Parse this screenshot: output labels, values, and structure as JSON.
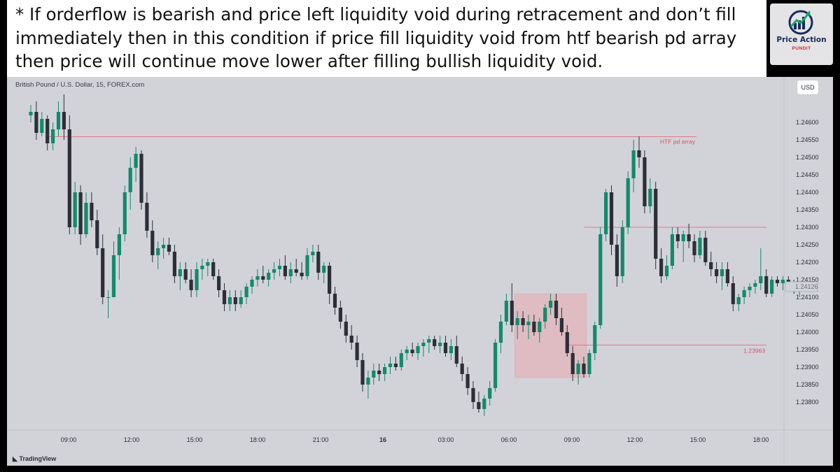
{
  "note": {
    "text": "* If orderflow is bearish and price left liquidity void during retracement and don’t fill immediately then in this condition if price fill liquidity void from htf bearish pd array then price will continue move lower after filling bullish liquidity void."
  },
  "logo": {
    "title": "Price Action",
    "subtitle": "PUNDIT"
  },
  "chart": {
    "symbol": "British Pound / U.S. Dollar, 15, FOREX.com",
    "currency": "USD",
    "watermark": "TradingView",
    "colors": {
      "background": "#d2d3d9",
      "bull": "#138a6c",
      "bear": "#2c2f38",
      "level_line": "#e07a80",
      "level_text": "#d9525a",
      "zone_fill": "#e0b7bc"
    }
  },
  "chart_data": {
    "type": "candlestick",
    "timeframe": "15",
    "y_axis": {
      "ylim": [
        1.2376,
        1.2464
      ],
      "ticks": [
        "1.24600",
        "1.24550",
        "1.24500",
        "1.24450",
        "1.24400",
        "1.24350",
        "1.24300",
        "1.24250",
        "1.24200",
        "1.24150",
        "1.24100",
        "1.24050",
        "1.24000",
        "1.23950",
        "1.23900",
        "1.23850",
        "1.23800"
      ],
      "last_price_label": "1.24126"
    },
    "x_axis": {
      "tick_labels": [
        "09:00",
        "12:00",
        "15:00",
        "18:00",
        "21:00",
        "16",
        "03:00",
        "06:00",
        "09:00",
        "12:00",
        "15:00",
        "18:00"
      ]
    },
    "levels": [
      {
        "price": 1.24559,
        "label": "HTF pd array"
      },
      {
        "price": 1.243,
        "label": ""
      },
      {
        "price": 1.23963,
        "label": "1.23963"
      }
    ],
    "zones": [
      {
        "top": 1.2411,
        "bottom": 1.2387,
        "start_index": 88,
        "end_index": 100
      }
    ],
    "bars": [
      [
        1.2462,
        1.2465,
        1.246,
        1.2463
      ],
      [
        1.2463,
        1.2466,
        1.2455,
        1.2457
      ],
      [
        1.2457,
        1.2463,
        1.2456,
        1.2461
      ],
      [
        1.2461,
        1.2462,
        1.2452,
        1.2454
      ],
      [
        1.2454,
        1.246,
        1.2452,
        1.2458
      ],
      [
        1.2458,
        1.2466,
        1.2456,
        1.2463
      ],
      [
        1.2463,
        1.2468,
        1.2455,
        1.2458
      ],
      [
        1.2458,
        1.2462,
        1.2428,
        1.243
      ],
      [
        1.243,
        1.2443,
        1.2428,
        1.244
      ],
      [
        1.244,
        1.2442,
        1.2425,
        1.2428
      ],
      [
        1.2428,
        1.244,
        1.2427,
        1.2437
      ],
      [
        1.2437,
        1.244,
        1.243,
        1.2432
      ],
      [
        1.2432,
        1.2435,
        1.2422,
        1.2424
      ],
      [
        1.2424,
        1.2428,
        1.2408,
        1.241
      ],
      [
        1.241,
        1.2412,
        1.2404,
        1.241
      ],
      [
        1.241,
        1.2426,
        1.241,
        1.2422
      ],
      [
        1.2422,
        1.243,
        1.2415,
        1.2428
      ],
      [
        1.2428,
        1.2442,
        1.2426,
        1.244
      ],
      [
        1.244,
        1.245,
        1.2435,
        1.2447
      ],
      [
        1.2447,
        1.2453,
        1.2443,
        1.2451
      ],
      [
        1.2451,
        1.2452,
        1.2435,
        1.2437
      ],
      [
        1.2437,
        1.244,
        1.2427,
        1.2429
      ],
      [
        1.2429,
        1.2432,
        1.242,
        1.2422
      ],
      [
        1.2422,
        1.2426,
        1.2418,
        1.2424
      ],
      [
        1.2424,
        1.2427,
        1.2421,
        1.2425
      ],
      [
        1.2425,
        1.2427,
        1.2422,
        1.2423
      ],
      [
        1.2423,
        1.2425,
        1.2414,
        1.2416
      ],
      [
        1.2416,
        1.242,
        1.2412,
        1.2418
      ],
      [
        1.2418,
        1.242,
        1.2414,
        1.2415
      ],
      [
        1.2415,
        1.2418,
        1.241,
        1.2412
      ],
      [
        1.2412,
        1.242,
        1.241,
        1.2418
      ],
      [
        1.2418,
        1.2421,
        1.2415,
        1.2419
      ],
      [
        1.2419,
        1.2421,
        1.2416,
        1.242
      ],
      [
        1.242,
        1.2421,
        1.2415,
        1.2416
      ],
      [
        1.2416,
        1.2418,
        1.241,
        1.2412
      ],
      [
        1.2412,
        1.2414,
        1.2406,
        1.2408
      ],
      [
        1.2408,
        1.2412,
        1.2406,
        1.241
      ],
      [
        1.241,
        1.2412,
        1.2406,
        1.2408
      ],
      [
        1.2408,
        1.2412,
        1.2407,
        1.241
      ],
      [
        1.241,
        1.2414,
        1.2408,
        1.2413
      ],
      [
        1.2413,
        1.2416,
        1.2411,
        1.2415
      ],
      [
        1.2415,
        1.2418,
        1.2413,
        1.2416
      ],
      [
        1.2416,
        1.2419,
        1.2414,
        1.2415
      ],
      [
        1.2415,
        1.2418,
        1.2413,
        1.2417
      ],
      [
        1.2417,
        1.242,
        1.2415,
        1.2418
      ],
      [
        1.2418,
        1.2421,
        1.2416,
        1.2419
      ],
      [
        1.2419,
        1.2422,
        1.2415,
        1.2416
      ],
      [
        1.2416,
        1.242,
        1.2414,
        1.2418
      ],
      [
        1.2418,
        1.2421,
        1.2416,
        1.2417
      ],
      [
        1.2417,
        1.242,
        1.2415,
        1.2416
      ],
      [
        1.2416,
        1.2424,
        1.2415,
        1.2422
      ],
      [
        1.2422,
        1.2425,
        1.242,
        1.2423
      ],
      [
        1.2423,
        1.2425,
        1.2415,
        1.2417
      ],
      [
        1.2417,
        1.242,
        1.2414,
        1.2419
      ],
      [
        1.2419,
        1.242,
        1.2408,
        1.2411
      ],
      [
        1.2411,
        1.2413,
        1.2405,
        1.2407
      ],
      [
        1.2407,
        1.2409,
        1.2401,
        1.2403
      ],
      [
        1.2403,
        1.2405,
        1.2397,
        1.2399
      ],
      [
        1.2399,
        1.2402,
        1.2395,
        1.2397
      ],
      [
        1.2397,
        1.2399,
        1.239,
        1.2392
      ],
      [
        1.2392,
        1.2394,
        1.2383,
        1.2385
      ],
      [
        1.2385,
        1.2389,
        1.2381,
        1.2387
      ],
      [
        1.2387,
        1.2391,
        1.2385,
        1.2389
      ],
      [
        1.2389,
        1.2391,
        1.2386,
        1.2388
      ],
      [
        1.2388,
        1.2391,
        1.2386,
        1.239
      ],
      [
        1.239,
        1.2393,
        1.2388,
        1.2391
      ],
      [
        1.2391,
        1.2393,
        1.2389,
        1.239
      ],
      [
        1.239,
        1.2395,
        1.2389,
        1.2394
      ],
      [
        1.2394,
        1.2396,
        1.2392,
        1.2395
      ],
      [
        1.2395,
        1.2397,
        1.2393,
        1.2394
      ],
      [
        1.2394,
        1.2397,
        1.2392,
        1.2396
      ],
      [
        1.2396,
        1.2398,
        1.2393,
        1.2397
      ],
      [
        1.2397,
        1.2399,
        1.2394,
        1.2398
      ],
      [
        1.2398,
        1.2399,
        1.2395,
        1.2396
      ],
      [
        1.2396,
        1.2399,
        1.2394,
        1.2397
      ],
      [
        1.2397,
        1.2399,
        1.2393,
        1.2394
      ],
      [
        1.2394,
        1.2398,
        1.2392,
        1.2396
      ],
      [
        1.2396,
        1.2399,
        1.239,
        1.2391
      ],
      [
        1.2391,
        1.2393,
        1.2386,
        1.2388
      ],
      [
        1.2388,
        1.239,
        1.2382,
        1.2384
      ],
      [
        1.2384,
        1.2386,
        1.2378,
        1.238
      ],
      [
        1.238,
        1.2383,
        1.2377,
        1.2378
      ],
      [
        1.2378,
        1.2382,
        1.2376,
        1.2381
      ],
      [
        1.2381,
        1.2386,
        1.2379,
        1.2384
      ],
      [
        1.2384,
        1.2398,
        1.2383,
        1.2397
      ],
      [
        1.2397,
        1.2405,
        1.2394,
        1.2403
      ],
      [
        1.2403,
        1.2411,
        1.2402,
        1.2409
      ],
      [
        1.2409,
        1.2414,
        1.24,
        1.2402
      ],
      [
        1.2402,
        1.2406,
        1.2398,
        1.2404
      ],
      [
        1.2404,
        1.2406,
        1.24,
        1.2402
      ],
      [
        1.2402,
        1.2405,
        1.2398,
        1.2403
      ],
      [
        1.2403,
        1.2405,
        1.2399,
        1.24
      ],
      [
        1.24,
        1.2404,
        1.2397,
        1.2403
      ],
      [
        1.2403,
        1.2408,
        1.2401,
        1.2407
      ],
      [
        1.2407,
        1.2411,
        1.2405,
        1.2409
      ],
      [
        1.2409,
        1.2411,
        1.2402,
        1.2404
      ],
      [
        1.2404,
        1.2407,
        1.2399,
        1.24
      ],
      [
        1.24,
        1.2402,
        1.2393,
        1.2394
      ],
      [
        1.2394,
        1.2396,
        1.2386,
        1.2388
      ],
      [
        1.2388,
        1.2392,
        1.2385,
        1.2391
      ],
      [
        1.2391,
        1.2393,
        1.2387,
        1.2388
      ],
      [
        1.2388,
        1.2395,
        1.2387,
        1.2394
      ],
      [
        1.2394,
        1.2403,
        1.2392,
        1.2402
      ],
      [
        1.2402,
        1.243,
        1.2401,
        1.2428
      ],
      [
        1.2428,
        1.2441,
        1.2426,
        1.244
      ],
      [
        1.244,
        1.2442,
        1.2422,
        1.2425
      ],
      [
        1.2425,
        1.2428,
        1.2413,
        1.2416
      ],
      [
        1.2416,
        1.2432,
        1.2414,
        1.243
      ],
      [
        1.243,
        1.2446,
        1.2428,
        1.2444
      ],
      [
        1.2444,
        1.2455,
        1.244,
        1.2452
      ],
      [
        1.2452,
        1.2456,
        1.2447,
        1.245
      ],
      [
        1.245,
        1.2452,
        1.2434,
        1.2436
      ],
      [
        1.2436,
        1.2444,
        1.2434,
        1.2441
      ],
      [
        1.2441,
        1.2443,
        1.2418,
        1.2421
      ],
      [
        1.2421,
        1.2424,
        1.2414,
        1.2416
      ],
      [
        1.2416,
        1.2422,
        1.2415,
        1.2419
      ],
      [
        1.2419,
        1.243,
        1.2418,
        1.2428
      ],
      [
        1.2428,
        1.243,
        1.2424,
        1.2426
      ],
      [
        1.2426,
        1.2429,
        1.242,
        1.2428
      ],
      [
        1.2428,
        1.2431,
        1.2424,
        1.2426
      ],
      [
        1.2426,
        1.2428,
        1.242,
        1.2422
      ],
      [
        1.2422,
        1.2429,
        1.2421,
        1.2427
      ],
      [
        1.2427,
        1.2429,
        1.2419,
        1.242
      ],
      [
        1.242,
        1.2423,
        1.2416,
        1.2418
      ],
      [
        1.2418,
        1.242,
        1.2414,
        1.2416
      ],
      [
        1.2416,
        1.242,
        1.2412,
        1.2418
      ],
      [
        1.2418,
        1.242,
        1.2413,
        1.2414
      ],
      [
        1.2414,
        1.2416,
        1.2406,
        1.2408
      ],
      [
        1.2408,
        1.2411,
        1.2406,
        1.241
      ],
      [
        1.241,
        1.2413,
        1.2408,
        1.2412
      ],
      [
        1.2412,
        1.2414,
        1.241,
        1.2413
      ],
      [
        1.2413,
        1.2415,
        1.2411,
        1.2414
      ],
      [
        1.2414,
        1.2424,
        1.2412,
        1.2416
      ],
      [
        1.2416,
        1.2418,
        1.241,
        1.2411
      ],
      [
        1.2411,
        1.2416,
        1.241,
        1.2415
      ],
      [
        1.2415,
        1.2416,
        1.2413,
        1.2414
      ],
      [
        1.2414,
        1.2416,
        1.2412,
        1.2415
      ],
      [
        1.2415,
        1.2416,
        1.2412,
        1.2413
      ],
      [
        1.2413,
        1.2415,
        1.2411,
        1.2412
      ],
      [
        1.2412,
        1.2414,
        1.241,
        1.2413
      ]
    ]
  }
}
